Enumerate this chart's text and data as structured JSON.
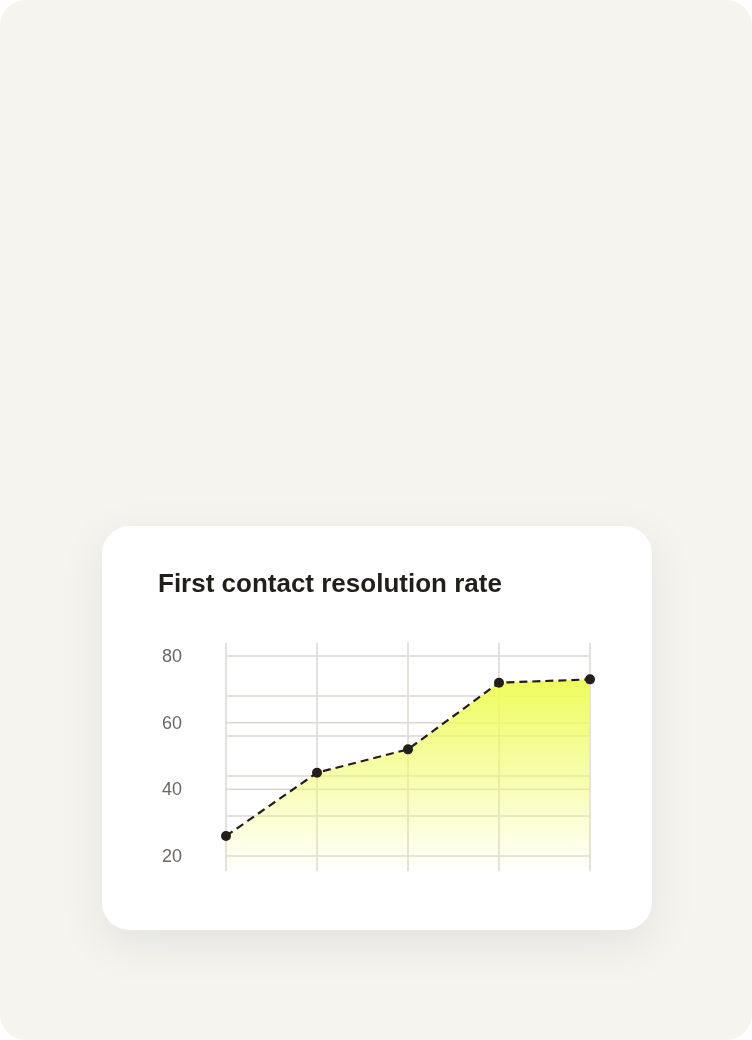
{
  "chart_data": {
    "type": "area",
    "title": "First contact resolution rate",
    "categories": [
      null,
      null,
      null,
      null,
      null
    ],
    "series": [
      {
        "color": "#effc5c",
        "values": [
          26,
          45,
          52,
          72,
          73
        ]
      }
    ],
    "ylim": [
      15,
      84
    ],
    "yticks": [
      20,
      {
        "value": 32,
        "label": null
      },
      40,
      {
        "value": 44,
        "label": null
      },
      {
        "value": 56,
        "label": null
      },
      60,
      {
        "value": 68,
        "label": null
      },
      80
    ],
    "grid": true,
    "marker": "circle",
    "line_style": "dashed"
  }
}
